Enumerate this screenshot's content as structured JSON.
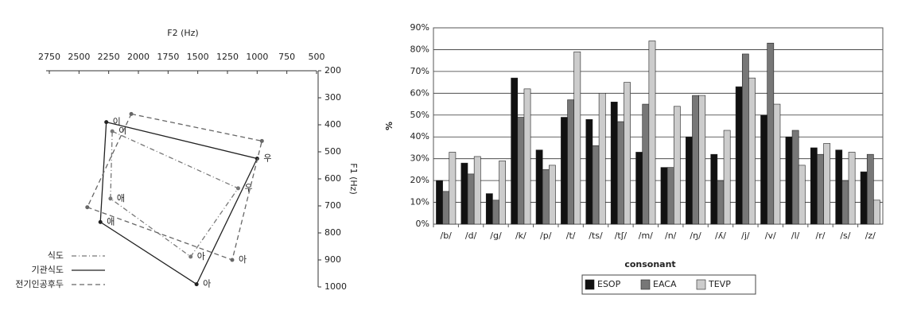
{
  "chart_data": [
    {
      "type": "line",
      "x_label": "F2 (Hz)",
      "y_label": "F1 (Hz)",
      "xlim": [
        2750,
        500
      ],
      "xticks": [
        2750,
        2500,
        2250,
        2000,
        1750,
        1500,
        1250,
        1000,
        750,
        500
      ],
      "ylim": [
        200,
        1000
      ],
      "yticks": [
        200,
        300,
        400,
        500,
        600,
        700,
        800,
        900,
        1000
      ],
      "y_reversed": true,
      "closed": true,
      "legend": "lower left",
      "series": [
        {
          "name": "식도",
          "color": "#777777",
          "dash": "dashdot",
          "x": [
            2220,
            1160,
            1560,
            2235
          ],
          "values": [
            424,
            635,
            888,
            673
          ],
          "labels": [
            "이",
            "우",
            "아",
            "애"
          ]
        },
        {
          "name": "기관식도",
          "color": "#222222",
          "dash": "solid",
          "x": [
            2270,
            1000,
            1510,
            2320
          ],
          "values": [
            390,
            525,
            990,
            760
          ],
          "labels": [
            "이",
            "우",
            "아",
            "애"
          ]
        },
        {
          "name": "전기인공후두",
          "color": "#666666",
          "dash": "dashed",
          "x": [
            2060,
            960,
            1210,
            2430
          ],
          "values": [
            360,
            460,
            900,
            705
          ],
          "labels": [
            null,
            null,
            "아",
            null
          ]
        }
      ]
    },
    {
      "type": "bar",
      "x_label": "consonant",
      "y_label": "%",
      "legend": "bottom",
      "grid": true,
      "categories": [
        "/b/",
        "/d/",
        "/g/",
        "/k/",
        "/p/",
        "/t/",
        "/ts/",
        "/tʃ/",
        "/m/",
        "/n/",
        "/ŋ/",
        "/ʎ/",
        "/j/",
        "/v/",
        "/l/",
        "/r/",
        "/s/",
        "/z/"
      ],
      "ylim": [
        0,
        90
      ],
      "yticks": [
        {
          "value": 0,
          "label": "0%"
        },
        {
          "value": 10,
          "label": "10%"
        },
        {
          "value": 20,
          "label": "20%"
        },
        {
          "value": 30,
          "label": "30%"
        },
        {
          "value": 40,
          "label": "40%"
        },
        {
          "value": 50,
          "label": "50%"
        },
        {
          "value": 60,
          "label": "60%"
        },
        {
          "value": 70,
          "label": "70%"
        },
        {
          "value": 80,
          "label": "80%"
        },
        {
          "value": 90,
          "label": "90%"
        }
      ],
      "series": [
        {
          "name": "ESOP",
          "color": "#111111",
          "values": [
            20,
            28,
            14,
            67,
            34,
            49,
            48,
            56,
            33,
            26,
            40,
            32,
            63,
            50,
            40,
            35,
            34,
            24
          ]
        },
        {
          "name": "EACA",
          "color": "#777777",
          "values": [
            15,
            23,
            11,
            49,
            25,
            57,
            36,
            47,
            55,
            26,
            59,
            20,
            78,
            83,
            43,
            32,
            20,
            32
          ]
        },
        {
          "name": "TEVP",
          "color": "#cccccc",
          "values": [
            33,
            31,
            29,
            62,
            27,
            79,
            60,
            65,
            84,
            54,
            59,
            43,
            67,
            55,
            27,
            37,
            33,
            11
          ]
        }
      ]
    }
  ]
}
